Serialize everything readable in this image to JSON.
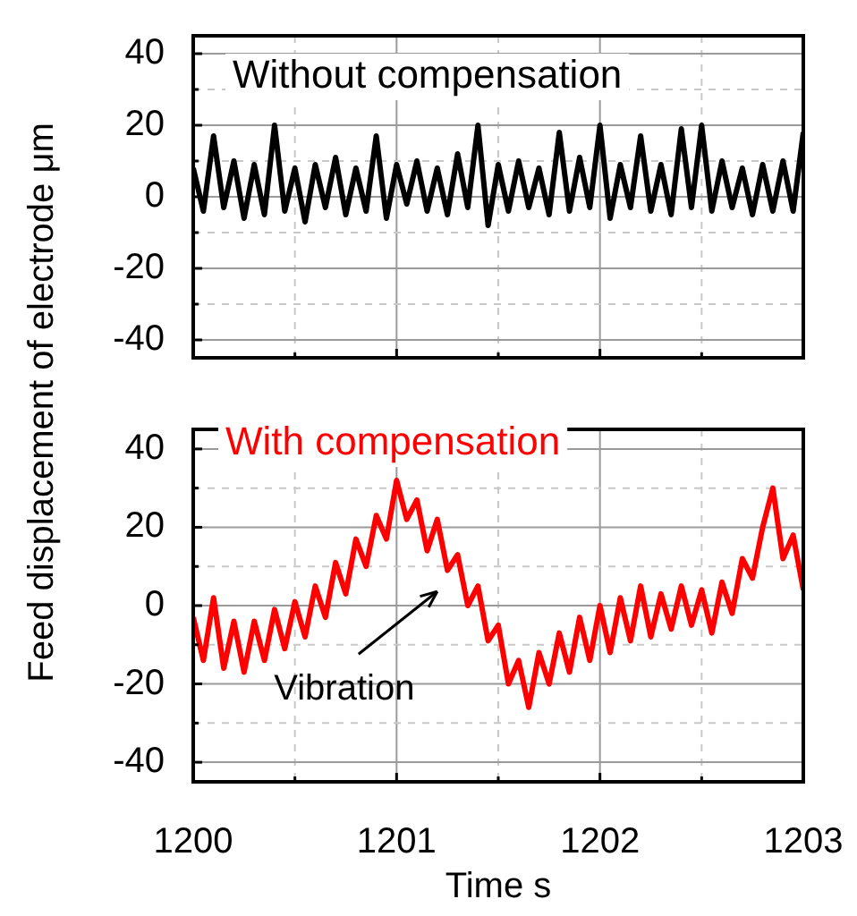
{
  "chart_data": [
    {
      "type": "line",
      "ylabel": "Feed displacement of electrode μm",
      "xlim": [
        1200,
        1203
      ],
      "ylim": [
        -45,
        45
      ],
      "tick_labels": "y",
      "grid": true,
      "legend": false,
      "marker": "none",
      "line_style": "solid",
      "xticks": [
        1200,
        {
          "value": 1200.5,
          "label": null
        },
        1201,
        {
          "value": 1201.5,
          "label": null
        },
        1202,
        {
          "value": 1202.5,
          "label": null
        },
        1203
      ],
      "yticks": [
        -40,
        {
          "value": -30,
          "label": null
        },
        -20,
        {
          "value": -10,
          "label": null
        },
        0,
        {
          "value": 10,
          "label": null
        },
        20,
        {
          "value": 30,
          "label": null
        },
        40
      ],
      "series": [
        {
          "name": "Without compensation",
          "color": "#000000",
          "x": [
            1200,
            1200.05,
            1200.1,
            1200.15,
            1200.2,
            1200.25,
            1200.3,
            1200.35,
            1200.4,
            1200.45,
            1200.5,
            1200.55,
            1200.6,
            1200.65,
            1200.7,
            1200.75,
            1200.8,
            1200.85,
            1200.9,
            1200.95,
            1201,
            1201.05,
            1201.1,
            1201.15,
            1201.2,
            1201.25,
            1201.3,
            1201.35,
            1201.4,
            1201.45,
            1201.5,
            1201.55,
            1201.6,
            1201.65,
            1201.7,
            1201.75,
            1201.8,
            1201.85,
            1201.9,
            1201.95,
            1202,
            1202.05,
            1202.1,
            1202.15,
            1202.2,
            1202.25,
            1202.3,
            1202.35,
            1202.4,
            1202.45,
            1202.5,
            1202.55,
            1202.6,
            1202.65,
            1202.7,
            1202.75,
            1202.8,
            1202.85,
            1202.9,
            1202.95,
            1203
          ],
          "values": [
            8,
            -4,
            17,
            -3,
            10,
            -6,
            9,
            -5,
            20,
            -4,
            8,
            -7,
            9,
            -3,
            11,
            -5,
            8,
            -4,
            17,
            -6,
            9,
            -2,
            10,
            -4,
            8,
            -5,
            12,
            -3,
            20,
            -8,
            9,
            -4,
            10,
            -3,
            8,
            -5,
            18,
            -4,
            11,
            -3,
            20,
            -6,
            9,
            -3,
            17,
            -4,
            9,
            -5,
            19,
            -3,
            20,
            -4,
            10,
            -3,
            8,
            -5,
            9,
            -4,
            10,
            -4,
            18
          ]
        }
      ]
    },
    {
      "type": "line",
      "xlabel": "Time s",
      "xlim": [
        1200,
        1203
      ],
      "ylim": [
        -45,
        45
      ],
      "grid": true,
      "legend": false,
      "marker": "none",
      "line_style": "solid",
      "xticks": [
        1200,
        {
          "value": 1200.5,
          "label": null
        },
        1201,
        {
          "value": 1201.5,
          "label": null
        },
        1202,
        {
          "value": 1202.5,
          "label": null
        },
        1203
      ],
      "yticks": [
        -40,
        {
          "value": -30,
          "label": null
        },
        -20,
        {
          "value": -10,
          "label": null
        },
        0,
        {
          "value": 10,
          "label": null
        },
        20,
        {
          "value": 30,
          "label": null
        },
        40
      ],
      "annotations": [
        "Vibration"
      ],
      "series": [
        {
          "name": "With compensation",
          "color": "#ff0000",
          "x": [
            1200,
            1200.05,
            1200.1,
            1200.15,
            1200.2,
            1200.25,
            1200.3,
            1200.35,
            1200.4,
            1200.45,
            1200.5,
            1200.55,
            1200.6,
            1200.65,
            1200.7,
            1200.75,
            1200.8,
            1200.85,
            1200.9,
            1200.95,
            1201,
            1201.05,
            1201.1,
            1201.15,
            1201.2,
            1201.25,
            1201.3,
            1201.35,
            1201.4,
            1201.45,
            1201.5,
            1201.55,
            1201.6,
            1201.65,
            1201.7,
            1201.75,
            1201.8,
            1201.85,
            1201.9,
            1201.95,
            1202,
            1202.05,
            1202.1,
            1202.15,
            1202.2,
            1202.25,
            1202.3,
            1202.35,
            1202.4,
            1202.45,
            1202.5,
            1202.55,
            1202.6,
            1202.65,
            1202.7,
            1202.75,
            1202.8,
            1202.85,
            1202.9,
            1202.95,
            1203
          ],
          "values": [
            -3,
            -14,
            2,
            -16,
            -4,
            -17,
            -4,
            -14,
            -1,
            -11,
            1,
            -8,
            5,
            -3,
            11,
            3,
            17,
            10,
            23,
            17,
            32,
            22,
            27,
            14,
            22,
            9,
            13,
            0,
            5,
            -9,
            -5,
            -20,
            -14,
            -26,
            -12,
            -20,
            -7,
            -17,
            -3,
            -14,
            0,
            -12,
            2,
            -9,
            5,
            -8,
            3,
            -6,
            5,
            -5,
            4,
            -7,
            6,
            -2,
            12,
            7,
            20,
            30,
            12,
            18,
            4
          ]
        }
      ]
    }
  ]
}
